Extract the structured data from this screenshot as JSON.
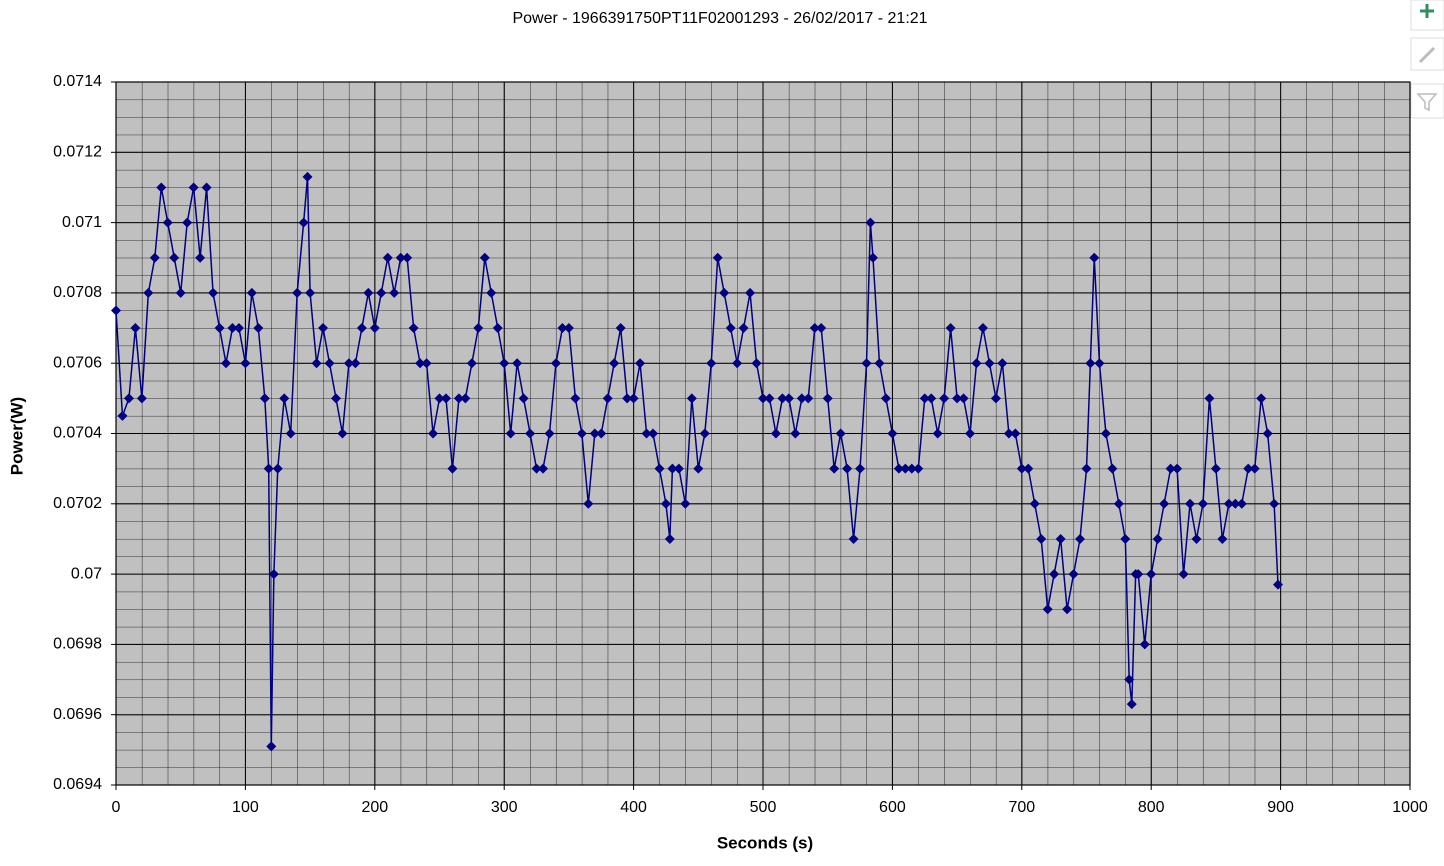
{
  "chart_data": {
    "type": "line",
    "title": "Power - 1966391750PT11F02001293 - 26/02/2017 - 21:21",
    "x_label": "Seconds (s)",
    "y_label": "Power(W)",
    "color": "#000080",
    "plot_background": "#c0c0c0",
    "grid": true,
    "xlim": [
      0,
      1000
    ],
    "xticks": [
      0,
      100,
      200,
      300,
      400,
      500,
      600,
      700,
      800,
      900,
      1000
    ],
    "ylim": [
      0.0694,
      0.0714
    ],
    "yticks": [
      0.0694,
      0.0696,
      0.0698,
      0.07,
      0.0702,
      0.0704,
      0.0706,
      0.0708,
      0.071,
      0.0712,
      0.0714
    ],
    "x": [
      0,
      5,
      10,
      15,
      20,
      25,
      30,
      35,
      40,
      45,
      50,
      55,
      60,
      65,
      70,
      75,
      80,
      85,
      90,
      95,
      100,
      105,
      110,
      115,
      118,
      120,
      122,
      125,
      130,
      135,
      140,
      145,
      148,
      150,
      155,
      160,
      165,
      170,
      175,
      180,
      185,
      190,
      195,
      200,
      205,
      210,
      215,
      220,
      225,
      230,
      235,
      240,
      245,
      250,
      255,
      260,
      265,
      270,
      275,
      280,
      285,
      290,
      295,
      300,
      305,
      310,
      315,
      320,
      325,
      330,
      335,
      340,
      345,
      350,
      355,
      360,
      365,
      370,
      375,
      380,
      385,
      390,
      395,
      400,
      405,
      410,
      415,
      420,
      425,
      428,
      430,
      435,
      440,
      445,
      450,
      455,
      460,
      465,
      470,
      475,
      480,
      485,
      490,
      495,
      500,
      505,
      510,
      515,
      520,
      525,
      530,
      535,
      540,
      545,
      550,
      555,
      560,
      565,
      570,
      575,
      580,
      583,
      585,
      590,
      595,
      600,
      605,
      610,
      615,
      620,
      625,
      630,
      635,
      640,
      645,
      650,
      655,
      660,
      665,
      670,
      675,
      680,
      685,
      690,
      695,
      700,
      705,
      710,
      715,
      720,
      725,
      730,
      735,
      740,
      745,
      750,
      753,
      756,
      760,
      765,
      770,
      775,
      780,
      783,
      785,
      788,
      790,
      795,
      800,
      805,
      810,
      815,
      820,
      825,
      830,
      835,
      840,
      845,
      850,
      855,
      860,
      865,
      870,
      875,
      880,
      885,
      890,
      895,
      898
    ],
    "values": [
      0.07075,
      0.07045,
      0.0705,
      0.0707,
      0.0705,
      0.0708,
      0.0709,
      0.0711,
      0.071,
      0.0709,
      0.0708,
      0.071,
      0.0711,
      0.0709,
      0.0711,
      0.0708,
      0.0707,
      0.0706,
      0.0707,
      0.0707,
      0.0706,
      0.0708,
      0.0707,
      0.0705,
      0.0703,
      0.06951,
      0.07,
      0.0703,
      0.0705,
      0.0704,
      0.0708,
      0.071,
      0.07113,
      0.0708,
      0.0706,
      0.0707,
      0.0706,
      0.0705,
      0.0704,
      0.0706,
      0.0706,
      0.0707,
      0.0708,
      0.0707,
      0.0708,
      0.0709,
      0.0708,
      0.0709,
      0.0709,
      0.0707,
      0.0706,
      0.0706,
      0.0704,
      0.0705,
      0.0705,
      0.0703,
      0.0705,
      0.0705,
      0.0706,
      0.0707,
      0.0709,
      0.0708,
      0.0707,
      0.0706,
      0.0704,
      0.0706,
      0.0705,
      0.0704,
      0.0703,
      0.0703,
      0.0704,
      0.0706,
      0.0707,
      0.0707,
      0.0705,
      0.0704,
      0.0702,
      0.0704,
      0.0704,
      0.0705,
      0.0706,
      0.0707,
      0.0705,
      0.0705,
      0.0706,
      0.0704,
      0.0704,
      0.0703,
      0.0702,
      0.0701,
      0.0703,
      0.0703,
      0.0702,
      0.0705,
      0.0703,
      0.0704,
      0.0706,
      0.0709,
      0.0708,
      0.0707,
      0.0706,
      0.0707,
      0.0708,
      0.0706,
      0.0705,
      0.0705,
      0.0704,
      0.0705,
      0.0705,
      0.0704,
      0.0705,
      0.0705,
      0.0707,
      0.0707,
      0.0705,
      0.0703,
      0.0704,
      0.0703,
      0.0701,
      0.0703,
      0.0706,
      0.071,
      0.0709,
      0.0706,
      0.0705,
      0.0704,
      0.0703,
      0.0703,
      0.0703,
      0.0703,
      0.0705,
      0.0705,
      0.0704,
      0.0705,
      0.0707,
      0.0705,
      0.0705,
      0.0704,
      0.0706,
      0.0707,
      0.0706,
      0.0705,
      0.0706,
      0.0704,
      0.0704,
      0.0703,
      0.0703,
      0.0702,
      0.0701,
      0.0699,
      0.07,
      0.0701,
      0.0699,
      0.07,
      0.0701,
      0.0703,
      0.0706,
      0.0709,
      0.0706,
      0.0704,
      0.0703,
      0.0702,
      0.0701,
      0.0697,
      0.06963,
      0.07,
      0.07,
      0.0698,
      0.07,
      0.0701,
      0.0702,
      0.0703,
      0.0703,
      0.07,
      0.0702,
      0.0701,
      0.0702,
      0.0705,
      0.0703,
      0.0701,
      0.0702,
      0.0702,
      0.0702,
      0.0703,
      0.0703,
      0.0705,
      0.0704,
      0.0702,
      0.06997
    ]
  }
}
